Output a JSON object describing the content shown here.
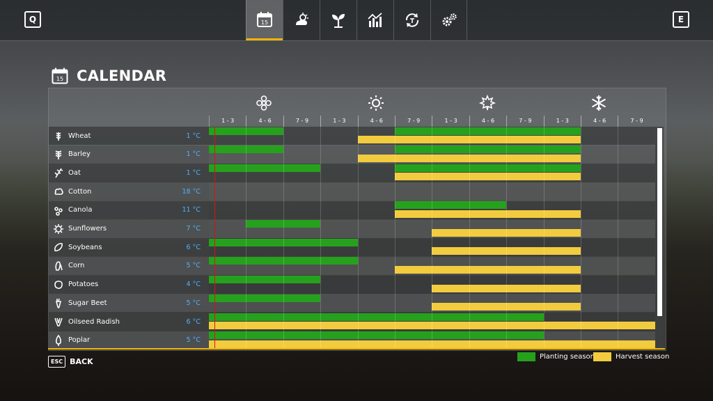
{
  "topbar": {
    "left_key": "Q",
    "right_key": "E",
    "tabs": [
      {
        "name": "calendar-icon",
        "label": "15",
        "active": true
      },
      {
        "name": "weather-icon",
        "active": false
      },
      {
        "name": "crop-sprout-icon",
        "active": false
      },
      {
        "name": "prices-chart-icon",
        "active": false
      },
      {
        "name": "finances-cycle-icon",
        "active": false
      },
      {
        "name": "settings-gears-icon",
        "active": false
      }
    ]
  },
  "page": {
    "title": "CALENDAR",
    "calendar_day": "15"
  },
  "seasons": [
    "spring-flower-icon",
    "summer-sun-icon",
    "autumn-leaf-icon",
    "winter-snowflake-icon"
  ],
  "periods": [
    "1 - 3",
    "4 - 6",
    "7 - 9",
    "1 - 3",
    "4 - 6",
    "7 - 9",
    "1 - 3",
    "4 - 6",
    "7 - 9",
    "1 - 3",
    "4 - 6",
    "7 - 9"
  ],
  "crops": [
    {
      "name": "Wheat",
      "temp": "1 °C",
      "icon": "wheat-icon",
      "planting": [
        [
          0,
          2
        ],
        [
          5,
          10
        ]
      ],
      "harvest": [
        [
          4,
          10
        ]
      ]
    },
    {
      "name": "Barley",
      "temp": "1 °C",
      "icon": "barley-icon",
      "planting": [
        [
          0,
          2
        ],
        [
          5,
          10
        ]
      ],
      "harvest": [
        [
          4,
          10
        ]
      ]
    },
    {
      "name": "Oat",
      "temp": "1 °C",
      "icon": "oat-icon",
      "planting": [
        [
          0,
          3
        ],
        [
          5,
          10
        ]
      ],
      "harvest": [
        [
          5,
          10
        ]
      ]
    },
    {
      "name": "Cotton",
      "temp": "18 °C",
      "icon": "cotton-icon",
      "planting": [],
      "harvest": []
    },
    {
      "name": "Canola",
      "temp": "11 °C",
      "icon": "canola-icon",
      "planting": [
        [
          5,
          8
        ]
      ],
      "harvest": [
        [
          5,
          10
        ]
      ]
    },
    {
      "name": "Sunflowers",
      "temp": "7 °C",
      "icon": "sunflower-icon",
      "planting": [
        [
          1,
          3
        ]
      ],
      "harvest": [
        [
          6,
          10
        ]
      ]
    },
    {
      "name": "Soybeans",
      "temp": "6 °C",
      "icon": "soybean-icon",
      "planting": [
        [
          0,
          4
        ]
      ],
      "harvest": [
        [
          6,
          10
        ]
      ]
    },
    {
      "name": "Corn",
      "temp": "5 °C",
      "icon": "corn-icon",
      "planting": [
        [
          0,
          4
        ]
      ],
      "harvest": [
        [
          5,
          10
        ]
      ]
    },
    {
      "name": "Potatoes",
      "temp": "4 °C",
      "icon": "potato-icon",
      "planting": [
        [
          0,
          3
        ]
      ],
      "harvest": [
        [
          6,
          10
        ]
      ]
    },
    {
      "name": "Sugar Beet",
      "temp": "5 °C",
      "icon": "sugar-beet-icon",
      "planting": [
        [
          0,
          3
        ]
      ],
      "harvest": [
        [
          6,
          10
        ]
      ]
    },
    {
      "name": "Oilseed Radish",
      "temp": "6 °C",
      "icon": "oilseed-radish-icon",
      "planting": [
        [
          0,
          9
        ]
      ],
      "harvest": [
        [
          0,
          12
        ]
      ]
    },
    {
      "name": "Poplar",
      "temp": "5 °C",
      "icon": "poplar-icon",
      "planting": [
        [
          0,
          9
        ]
      ],
      "harvest": [
        [
          0,
          12
        ]
      ]
    }
  ],
  "legend": {
    "planting_label": "Planting season",
    "harvest_label": "Harvest season",
    "planting_color": "#26a11d",
    "harvest_color": "#f2cc3e"
  },
  "footer": {
    "esc_key": "ESC",
    "back_label": "BACK"
  }
}
